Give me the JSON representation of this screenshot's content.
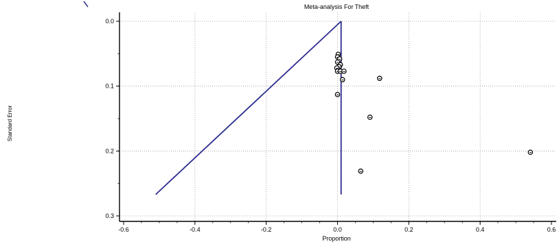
{
  "chart_data": {
    "type": "scatter",
    "title": "Meta-analysis For Theft",
    "xlabel": "Proportion",
    "ylabel": "Standard Error",
    "xlim": [
      -0.6,
      0.6
    ],
    "ylim": [
      0.0,
      0.3
    ],
    "y_reversed": true,
    "grid": true,
    "x_ticks": [
      "-0.6",
      "-0.4",
      "-0.2",
      "0.0",
      "0.2",
      "0.4",
      "0.6"
    ],
    "x_tick_values": [
      -0.6,
      -0.4,
      -0.2,
      0.0,
      0.2,
      0.4,
      0.6
    ],
    "y_ticks": [
      "0.0",
      "0.1",
      "0.2",
      "0.3"
    ],
    "y_tick_values": [
      0.0,
      0.1,
      0.2,
      0.3
    ],
    "points": [
      {
        "x": 0.002,
        "y": 0.051
      },
      {
        "x": 0.0,
        "y": 0.055
      },
      {
        "x": 0.006,
        "y": 0.058
      },
      {
        "x": 0.0,
        "y": 0.063
      },
      {
        "x": 0.008,
        "y": 0.067
      },
      {
        "x": 0.004,
        "y": 0.07
      },
      {
        "x": -0.002,
        "y": 0.072
      },
      {
        "x": 0.0,
        "y": 0.077
      },
      {
        "x": 0.008,
        "y": 0.077
      },
      {
        "x": 0.018,
        "y": 0.077
      },
      {
        "x": 0.014,
        "y": 0.09
      },
      {
        "x": 0.118,
        "y": 0.088
      },
      {
        "x": 0.0,
        "y": 0.113
      },
      {
        "x": 0.091,
        "y": 0.148
      },
      {
        "x": 0.541,
        "y": 0.202
      },
      {
        "x": 0.065,
        "y": 0.231
      }
    ],
    "funnel_lines": [
      {
        "name": "",
        "points": [
          [
            0.01,
            0.0
          ],
          [
            -0.51,
            0.267
          ]
        ]
      },
      {
        "name": "",
        "points": [
          [
            0.01,
            0.0
          ],
          [
            0.01,
            0.267
          ]
        ]
      }
    ],
    "colors": {
      "funnel": "#2b2b8f",
      "grid": "#9a9a9a",
      "marker": "#000000"
    }
  }
}
